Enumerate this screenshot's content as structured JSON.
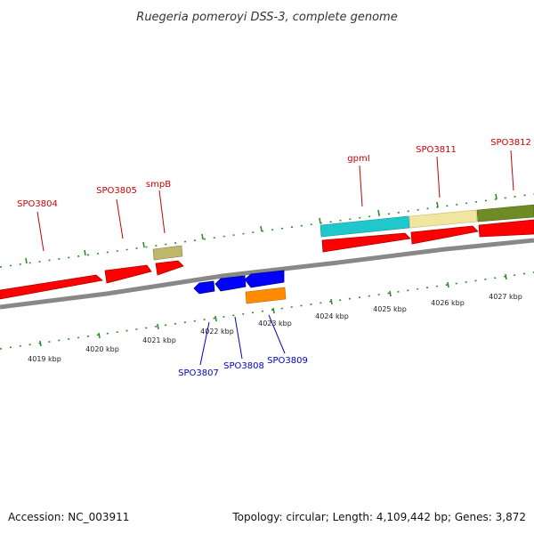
{
  "title": "Ruegeria pomeroyi DSS-3, complete genome",
  "accession_label": "Accession: NC_003911",
  "topology_summary": "Topology: circular; Length: 4,109,442 bp; Genes: 3,872",
  "colors": {
    "cds": "#ff0000",
    "reverse_cds": "#0000ff",
    "top_gene_label": "#cc0000",
    "bottom_gene_label": "#0000cc",
    "backbone": "#888888",
    "ticks": "#2e8b2e"
  },
  "kbp_ticks": [
    "4019 kbp",
    "4020 kbp",
    "4021 kbp",
    "4022 kbp",
    "4023 kbp",
    "4024 kbp",
    "4025 kbp",
    "4026 kbp",
    "4027 kbp"
  ],
  "top_genes": [
    {
      "label": "SPO3804"
    },
    {
      "label": "SPO3805"
    },
    {
      "label": "smpB"
    },
    {
      "label": "gpmI"
    },
    {
      "label": "SPO3811"
    },
    {
      "label": "SPO3812"
    }
  ],
  "bottom_genes": [
    {
      "label": "SPO3807"
    },
    {
      "label": "SPO3808"
    },
    {
      "label": "SPO3809"
    }
  ]
}
